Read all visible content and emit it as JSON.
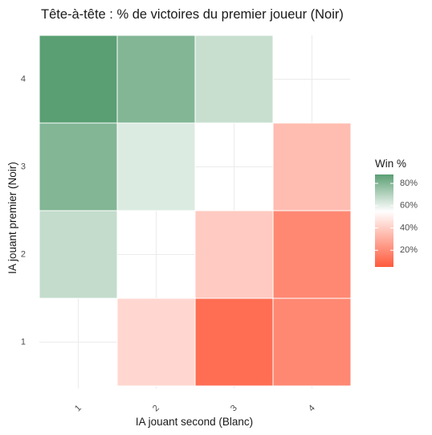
{
  "chart_data": {
    "type": "heatmap",
    "title": "Tête-à-tête : % de victoires du premier joueur (Noir)",
    "xlabel": "IA jouant second (Blanc)",
    "ylabel": "IA jouant premier (Noir)",
    "x_categories": [
      "1",
      "2",
      "3",
      "4"
    ],
    "y_categories": [
      "1",
      "2",
      "3",
      "4"
    ],
    "grid": true,
    "legend_position": "right",
    "cells": [
      {
        "x": "1",
        "y": "4",
        "value": 88
      },
      {
        "x": "2",
        "y": "4",
        "value": 80
      },
      {
        "x": "3",
        "y": "4",
        "value": 66
      },
      {
        "x": "1",
        "y": "3",
        "value": 80
      },
      {
        "x": "2",
        "y": "3",
        "value": 62
      },
      {
        "x": "4",
        "y": "3",
        "value": 35
      },
      {
        "x": "1",
        "y": "2",
        "value": 67
      },
      {
        "x": "3",
        "y": "2",
        "value": 39
      },
      {
        "x": "4",
        "y": "2",
        "value": 19
      },
      {
        "x": "2",
        "y": "1",
        "value": 43
      },
      {
        "x": "3",
        "y": "1",
        "value": 11
      },
      {
        "x": "4",
        "y": "1",
        "value": 19
      }
    ],
    "legend": {
      "title": "Win %",
      "ticks": [
        {
          "label": "80%",
          "value": 80
        },
        {
          "label": "60%",
          "value": 60
        },
        {
          "label": "40%",
          "value": 40
        },
        {
          "label": "20%",
          "value": 20
        }
      ],
      "range": [
        5,
        88
      ]
    },
    "colors": {
      "low": "#ff5a3c",
      "mid": "#ffffff",
      "high": "#5a9f73",
      "midpoint": 55
    }
  }
}
